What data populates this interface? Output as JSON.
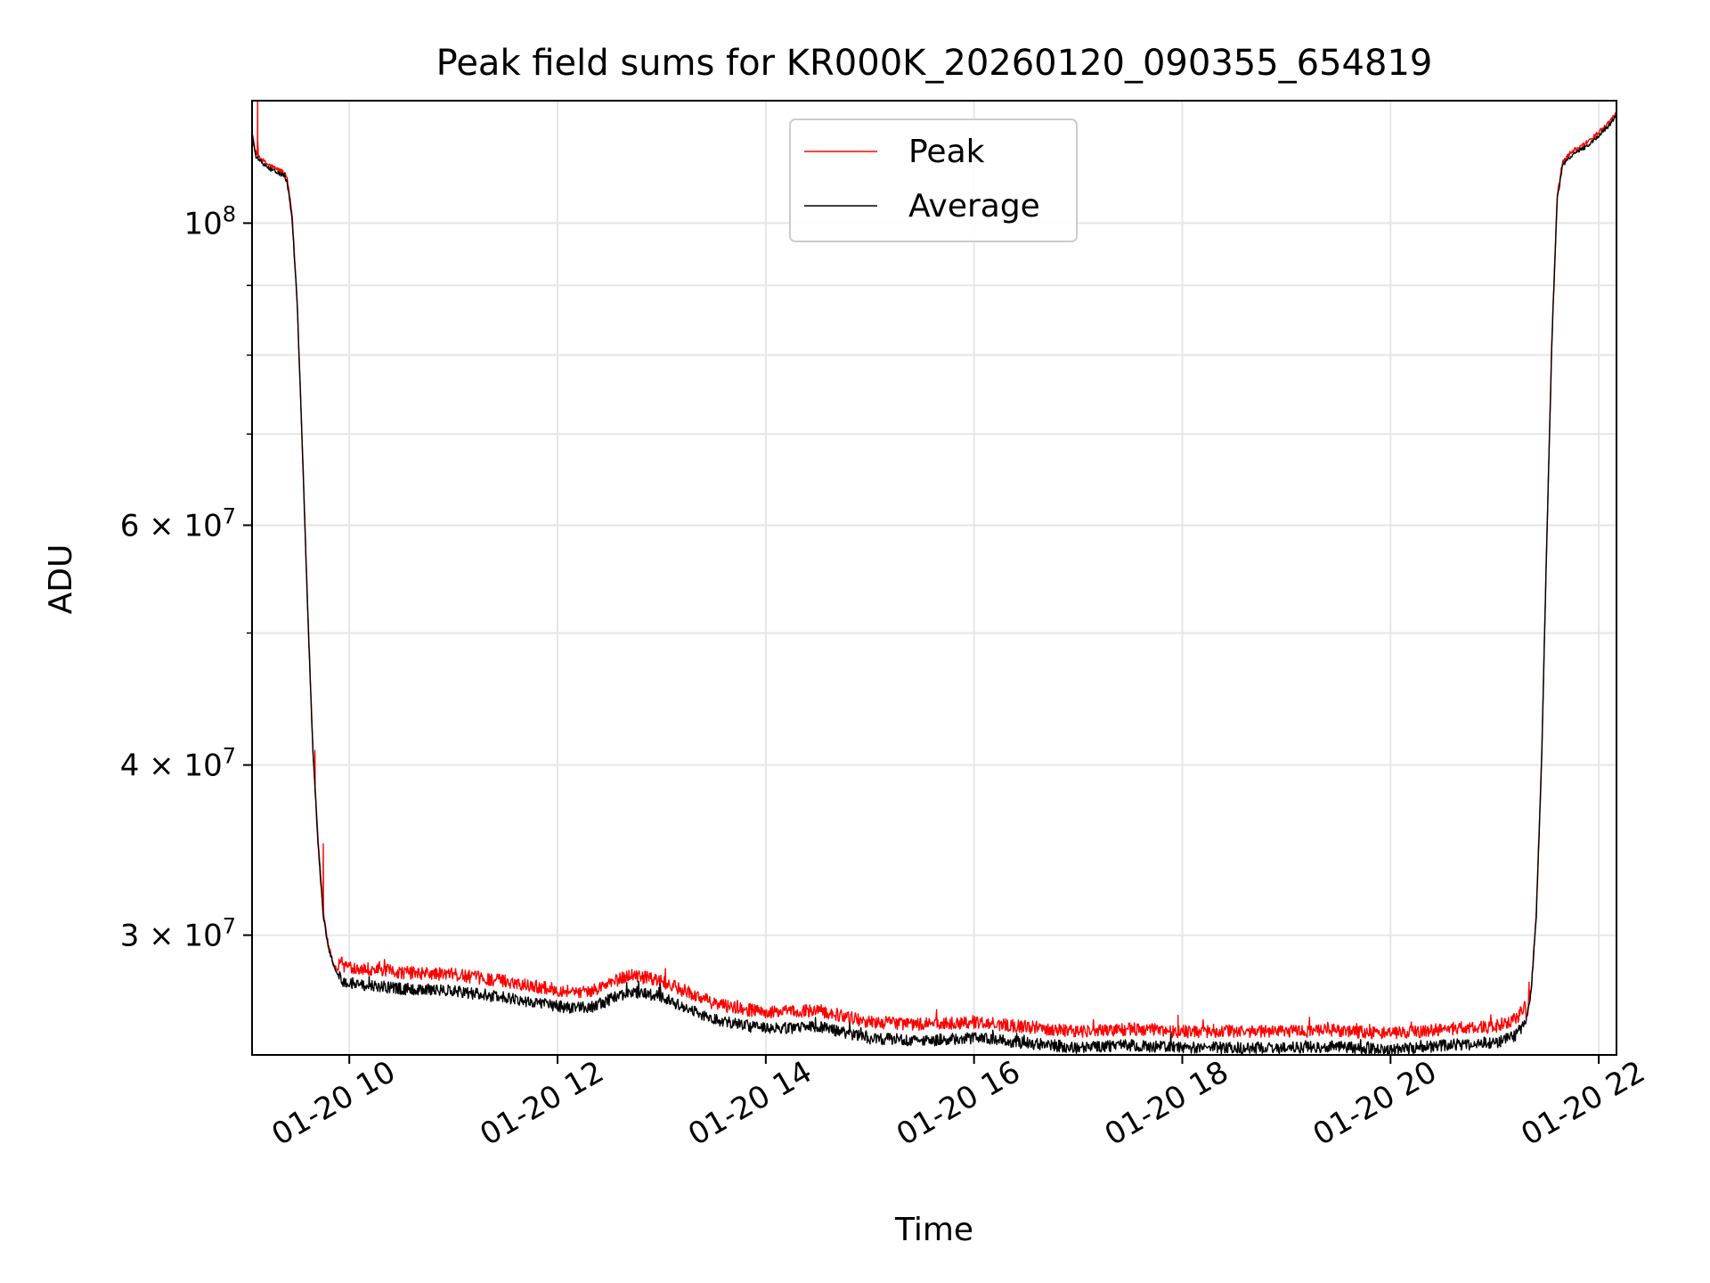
{
  "chart_data": {
    "type": "line",
    "title": "Peak field sums for KR000K_20260120_090355_654819",
    "xlabel": "Time",
    "ylabel": "ADU",
    "yscale": "log",
    "grid": true,
    "legend_position": "top-center",
    "xlim_hours": [
      9.066,
      22.17
    ],
    "ylim": [
      24500000,
      123000000
    ],
    "x_ticks": [
      {
        "hour": 10,
        "label": "01-20 10"
      },
      {
        "hour": 12,
        "label": "01-20 12"
      },
      {
        "hour": 14,
        "label": "01-20 14"
      },
      {
        "hour": 16,
        "label": "01-20 16"
      },
      {
        "hour": 18,
        "label": "01-20 18"
      },
      {
        "hour": 20,
        "label": "01-20 20"
      },
      {
        "hour": 22,
        "label": "01-20 22"
      }
    ],
    "y_major_ticks": [
      {
        "value": 30000000,
        "mant": "3 × 10",
        "exp": "7"
      },
      {
        "value": 40000000,
        "mant": "4 × 10",
        "exp": "7"
      },
      {
        "value": 60000000,
        "mant": "6 × 10",
        "exp": "7"
      },
      {
        "value": 100000000,
        "mant": "10",
        "exp": "8"
      }
    ],
    "y_minor_ticks": [
      50000000,
      70000000,
      80000000,
      90000000
    ],
    "series": [
      {
        "name": "Peak",
        "color": "#ff0000",
        "noise": 0.011,
        "offset": 1.028,
        "anchors": [
          [
            9.066,
            116000000
          ],
          [
            9.1,
            112000000
          ],
          [
            9.2,
            110000000
          ],
          [
            9.3,
            109000000
          ],
          [
            9.36,
            108500000
          ],
          [
            9.4,
            107500000
          ],
          [
            9.45,
            101000000
          ],
          [
            9.5,
            87000000
          ],
          [
            9.55,
            68000000
          ],
          [
            9.6,
            52000000
          ],
          [
            9.65,
            41000000
          ],
          [
            9.7,
            35000000
          ],
          [
            9.75,
            31000000
          ],
          [
            9.8,
            29300000
          ],
          [
            9.85,
            28400000
          ],
          [
            9.95,
            27700000
          ],
          [
            10.5,
            27400000
          ],
          [
            11.0,
            27300000
          ],
          [
            11.5,
            27000000
          ],
          [
            12.0,
            26600000
          ],
          [
            12.3,
            26500000
          ],
          [
            12.7,
            27300000
          ],
          [
            13.0,
            27000000
          ],
          [
            13.5,
            26000000
          ],
          [
            14.0,
            25600000
          ],
          [
            14.5,
            25700000
          ],
          [
            15.0,
            25200000
          ],
          [
            15.5,
            25100000
          ],
          [
            16.0,
            25200000
          ],
          [
            16.5,
            25000000
          ],
          [
            17.0,
            24800000
          ],
          [
            17.5,
            24900000
          ],
          [
            18.0,
            24800000
          ],
          [
            18.5,
            24800000
          ],
          [
            19.0,
            24800000
          ],
          [
            19.5,
            24850000
          ],
          [
            20.0,
            24700000
          ],
          [
            20.5,
            24900000
          ],
          [
            21.0,
            25000000
          ],
          [
            21.2,
            25300000
          ],
          [
            21.3,
            25900000
          ],
          [
            21.35,
            27200000
          ],
          [
            21.4,
            31000000
          ],
          [
            21.45,
            40000000
          ],
          [
            21.5,
            58000000
          ],
          [
            21.55,
            82000000
          ],
          [
            21.6,
            104000000
          ],
          [
            21.65,
            110000000
          ],
          [
            21.7,
            111500000
          ],
          [
            21.8,
            113000000
          ],
          [
            21.9,
            114000000
          ],
          [
            22.0,
            116000000
          ],
          [
            22.1,
            118000000
          ],
          [
            22.17,
            120000000
          ]
        ],
        "spikes": [
          [
            9.12,
            123000000
          ],
          [
            9.75,
            35000000
          ],
          [
            9.67,
            41000000
          ],
          [
            14.0,
            26400000
          ],
          [
            15.0,
            26000000
          ],
          [
            16.7,
            25600000
          ],
          [
            17.96,
            26200000
          ],
          [
            18.3,
            25800000
          ],
          [
            19.8,
            25800000
          ],
          [
            21.33,
            27700000
          ]
        ]
      },
      {
        "name": "Average",
        "color": "#000000",
        "noise": 0.01,
        "offset": 1.0,
        "anchors": [
          [
            9.066,
            116000000
          ],
          [
            9.1,
            112000000
          ],
          [
            9.2,
            110000000
          ],
          [
            9.3,
            109000000
          ],
          [
            9.36,
            108500000
          ],
          [
            9.4,
            107500000
          ],
          [
            9.45,
            101000000
          ],
          [
            9.5,
            87000000
          ],
          [
            9.55,
            68000000
          ],
          [
            9.6,
            52000000
          ],
          [
            9.65,
            41000000
          ],
          [
            9.7,
            35000000
          ],
          [
            9.75,
            31000000
          ],
          [
            9.8,
            29300000
          ],
          [
            9.85,
            28400000
          ],
          [
            9.95,
            27700000
          ],
          [
            10.5,
            27400000
          ],
          [
            11.0,
            27300000
          ],
          [
            11.5,
            27000000
          ],
          [
            12.0,
            26600000
          ],
          [
            12.3,
            26500000
          ],
          [
            12.7,
            27300000
          ],
          [
            13.0,
            27000000
          ],
          [
            13.5,
            26000000
          ],
          [
            14.0,
            25600000
          ],
          [
            14.5,
            25700000
          ],
          [
            15.0,
            25200000
          ],
          [
            15.5,
            25100000
          ],
          [
            16.0,
            25200000
          ],
          [
            16.5,
            25000000
          ],
          [
            17.0,
            24800000
          ],
          [
            17.5,
            24900000
          ],
          [
            18.0,
            24800000
          ],
          [
            18.5,
            24800000
          ],
          [
            19.0,
            24800000
          ],
          [
            19.5,
            24850000
          ],
          [
            20.0,
            24700000
          ],
          [
            20.5,
            24900000
          ],
          [
            21.0,
            25000000
          ],
          [
            21.2,
            25300000
          ],
          [
            21.3,
            25900000
          ],
          [
            21.35,
            27200000
          ],
          [
            21.4,
            31000000
          ],
          [
            21.45,
            40000000
          ],
          [
            21.5,
            58000000
          ],
          [
            21.55,
            82000000
          ],
          [
            21.6,
            104000000
          ],
          [
            21.65,
            110000000
          ],
          [
            21.7,
            111500000
          ],
          [
            21.8,
            113000000
          ],
          [
            21.9,
            114000000
          ],
          [
            22.0,
            116000000
          ],
          [
            22.1,
            118000000
          ],
          [
            22.17,
            120000000
          ]
        ],
        "spikes": []
      }
    ]
  }
}
